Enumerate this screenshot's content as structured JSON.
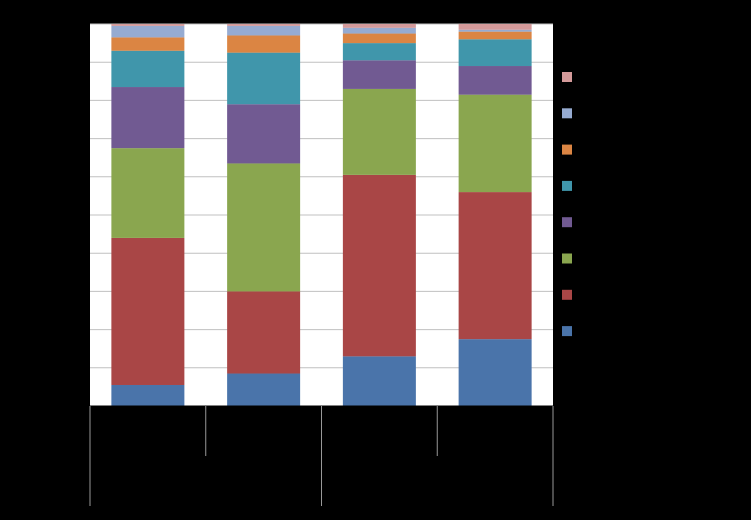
{
  "chart_data": {
    "type": "bar",
    "stacked": true,
    "normalized": true,
    "title": "",
    "xlabel": "",
    "ylabel": "",
    "ylim": [
      0,
      100
    ],
    "grid": true,
    "legend_position": "right",
    "categories": [
      "",
      "",
      "",
      ""
    ],
    "series": [
      {
        "color": "#4a74aa",
        "values": [
          5.5,
          8.5,
          13.0,
          17.5
        ]
      },
      {
        "color": "#a94646",
        "values": [
          38.5,
          21.5,
          47.5,
          38.5
        ]
      },
      {
        "color": "#8aa64f",
        "values": [
          23.5,
          33.5,
          22.5,
          25.5
        ]
      },
      {
        "color": "#715a92",
        "values": [
          16.0,
          15.5,
          7.5,
          7.5
        ]
      },
      {
        "color": "#4096ab",
        "values": [
          9.5,
          13.5,
          4.5,
          7.0
        ]
      },
      {
        "color": "#db8543",
        "values": [
          3.5,
          4.5,
          2.5,
          2.0
        ]
      },
      {
        "color": "#96abd1",
        "values": [
          3.0,
          2.5,
          1.5,
          0.5
        ]
      },
      {
        "color": "#d49a9a",
        "values": [
          0.5,
          0.5,
          1.0,
          1.5
        ]
      }
    ]
  }
}
